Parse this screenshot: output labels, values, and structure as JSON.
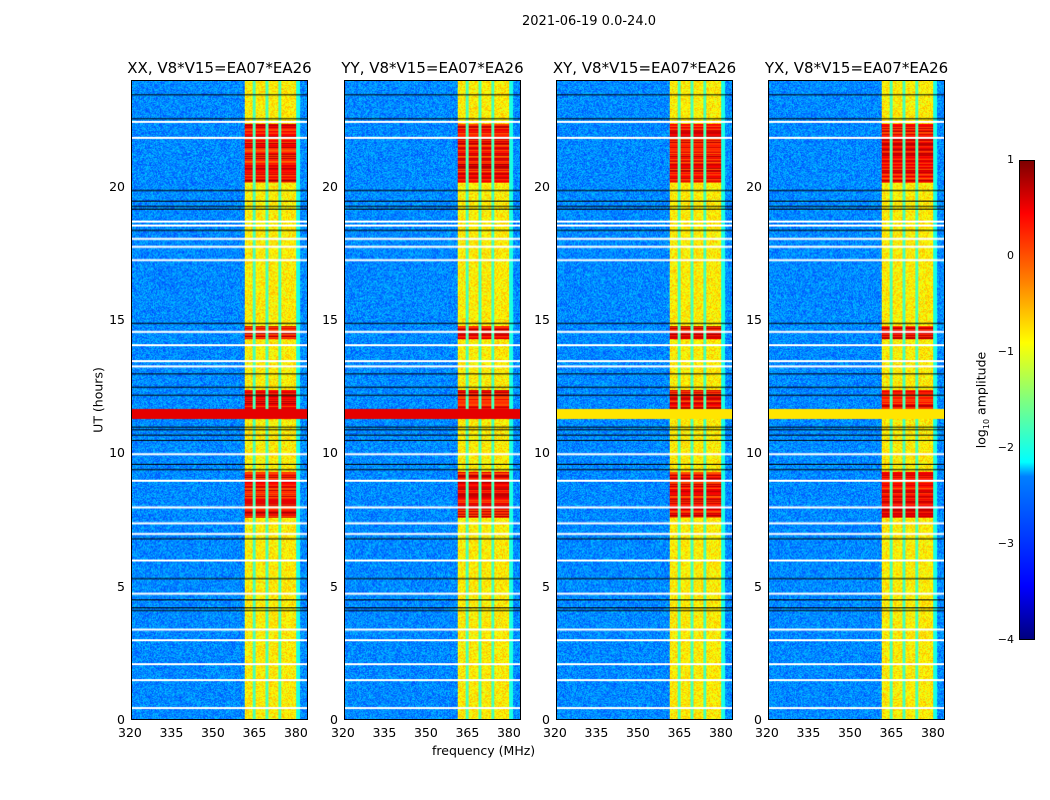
{
  "chart_data": {
    "type": "heatmap",
    "title": "2021-06-19 0.0-24.0",
    "xlabel": "frequency (MHz)",
    "ylabel": "UT (hours)",
    "xlim": [
      320,
      384
    ],
    "ylim": [
      0,
      24
    ],
    "xticks": [
      "320",
      "335",
      "350",
      "365",
      "380"
    ],
    "xtick_values": [
      320,
      335,
      350,
      365,
      380
    ],
    "yticks": [
      "0",
      "5",
      "10",
      "15",
      "20"
    ],
    "ytick_values": [
      0,
      5,
      10,
      15,
      20
    ],
    "panels": [
      {
        "title": "XX, V8*V15=EA07*EA26"
      },
      {
        "title": "YY, V8*V15=EA07*EA26"
      },
      {
        "title": "XY, V8*V15=EA07*EA26"
      },
      {
        "title": "YX, V8*V15=EA07*EA26"
      }
    ],
    "rfi_band_mhz": [
      361,
      380
    ],
    "colorbar": {
      "label_main": "log",
      "label_sub": "10",
      "label_tail": " amplitude",
      "range": [
        -4,
        1
      ],
      "ticks": [
        "1",
        "0",
        "−1",
        "−2",
        "−3",
        "−4"
      ],
      "tick_values": [
        1,
        0,
        -1,
        -2,
        -3,
        -4
      ],
      "colormap": "jet"
    }
  }
}
